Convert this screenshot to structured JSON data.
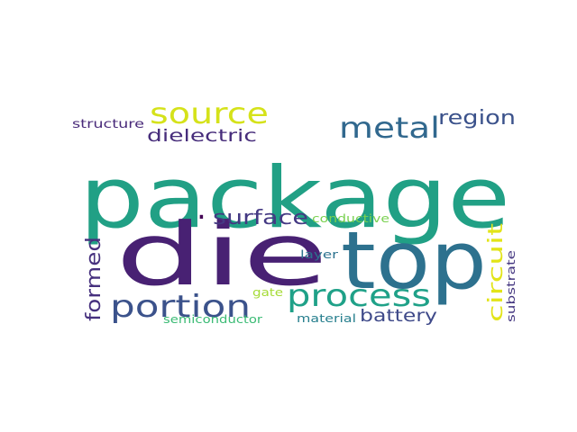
{
  "words": [
    {
      "text": "package",
      "color": "#21a085"
    },
    {
      "text": "die",
      "color": "#482173"
    },
    {
      "text": "top",
      "color": "#2d718e"
    },
    {
      "text": "process",
      "color": "#1fa188"
    },
    {
      "text": "portion",
      "color": "#3b528b"
    },
    {
      "text": "source",
      "color": "#d5e21a"
    },
    {
      "text": "metal",
      "color": "#31688e"
    },
    {
      "text": "region",
      "color": "#3b528b"
    },
    {
      "text": "surface",
      "color": "#443983"
    },
    {
      "text": "dielectric",
      "color": "#472d7b"
    },
    {
      "text": "formed",
      "color": "#46307e"
    },
    {
      "text": "circuit",
      "color": "#e2e418"
    },
    {
      "text": "battery",
      "color": "#3e4989"
    },
    {
      "text": "structure",
      "color": "#482979"
    },
    {
      "text": "conductive",
      "color": "#7ad151"
    },
    {
      "text": "layer",
      "color": "#2c728e"
    },
    {
      "text": "substrate",
      "color": "#453781"
    },
    {
      "text": "gate",
      "color": "#a5db36"
    },
    {
      "text": "semiconductor",
      "color": "#3bbb75"
    },
    {
      "text": "material",
      "color": "#277f8e"
    },
    {
      "text": ".",
      "color": "#440154"
    }
  ]
}
